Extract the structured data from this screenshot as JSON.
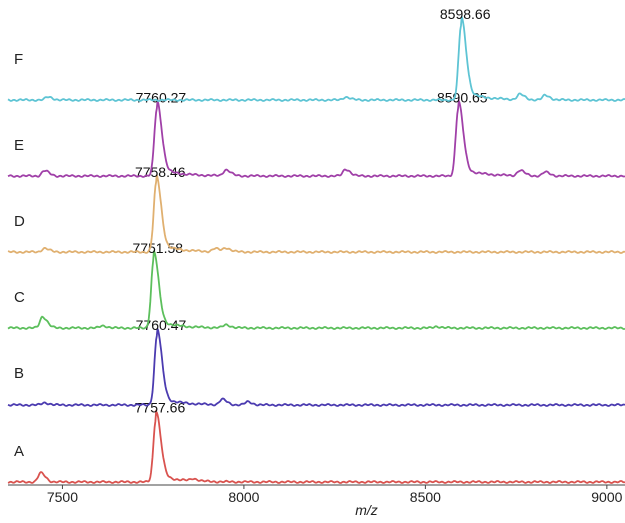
{
  "chart_data": {
    "type": "line",
    "xlabel": "m/z",
    "xlim": [
      7350,
      9050
    ],
    "xticks": [
      7500,
      8000,
      8500,
      9000
    ],
    "grid": false,
    "traces": [
      {
        "label": "A",
        "color": "#d9534f",
        "peaks": [
          {
            "x": 7440,
            "y": 0.12
          },
          {
            "x": 7757.66,
            "y": 0.85,
            "label": "7757.66"
          },
          {
            "x": 7860,
            "y": 0.03
          }
        ]
      },
      {
        "label": "B",
        "color": "#4b3bb0",
        "peaks": [
          {
            "x": 7450,
            "y": 0.03
          },
          {
            "x": 7760.47,
            "y": 0.92,
            "label": "7760.47"
          },
          {
            "x": 7940,
            "y": 0.07
          },
          {
            "x": 8010,
            "y": 0.04
          }
        ]
      },
      {
        "label": "C",
        "color": "#5cbf5c",
        "peaks": [
          {
            "x": 7445,
            "y": 0.15
          },
          {
            "x": 7610,
            "y": 0.03
          },
          {
            "x": 7751.58,
            "y": 0.92,
            "label": "7751.58"
          },
          {
            "x": 7950,
            "y": 0.04
          },
          {
            "x": 8530,
            "y": 0.02
          }
        ]
      },
      {
        "label": "D",
        "color": "#e0b070",
        "peaks": [
          {
            "x": 7450,
            "y": 0.05
          },
          {
            "x": 7758.46,
            "y": 0.92,
            "label": "7758.46"
          },
          {
            "x": 7920,
            "y": 0.04
          },
          {
            "x": 7950,
            "y": 0.05
          }
        ]
      },
      {
        "label": "E",
        "color": "#a040a8",
        "peaks": [
          {
            "x": 7450,
            "y": 0.07
          },
          {
            "x": 7760.27,
            "y": 0.9,
            "label": "7760.27"
          },
          {
            "x": 7950,
            "y": 0.08
          },
          {
            "x": 8280,
            "y": 0.09
          },
          {
            "x": 8590.65,
            "y": 0.9,
            "label": "8590.65"
          },
          {
            "x": 8760,
            "y": 0.07
          },
          {
            "x": 8830,
            "y": 0.05
          }
        ]
      },
      {
        "label": "F",
        "color": "#5ec4d4",
        "peaks": [
          {
            "x": 7460,
            "y": 0.04
          },
          {
            "x": 8280,
            "y": 0.04
          },
          {
            "x": 8598.66,
            "y": 1.0,
            "label": "8598.66"
          },
          {
            "x": 8760,
            "y": 0.07
          },
          {
            "x": 8830,
            "y": 0.06
          }
        ]
      }
    ]
  }
}
